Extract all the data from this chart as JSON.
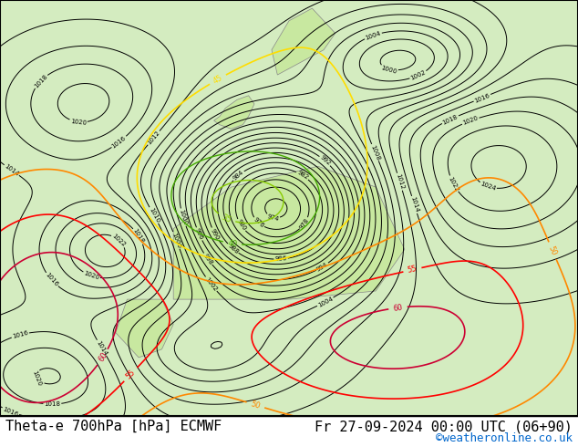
{
  "title_left": "Theta-e 700hPa [hPa] ECMWF",
  "title_right": "Fr 27-09-2024 00:00 UTC (06+90)",
  "watermark": "©weatheronline.co.uk",
  "bg_color": "#e8f5e0",
  "map_bg": "#d4ecc0",
  "border_color": "#000000",
  "title_fontsize": 11,
  "watermark_color": "#0066cc",
  "fig_width": 6.34,
  "fig_height": 4.9,
  "dpi": 100
}
